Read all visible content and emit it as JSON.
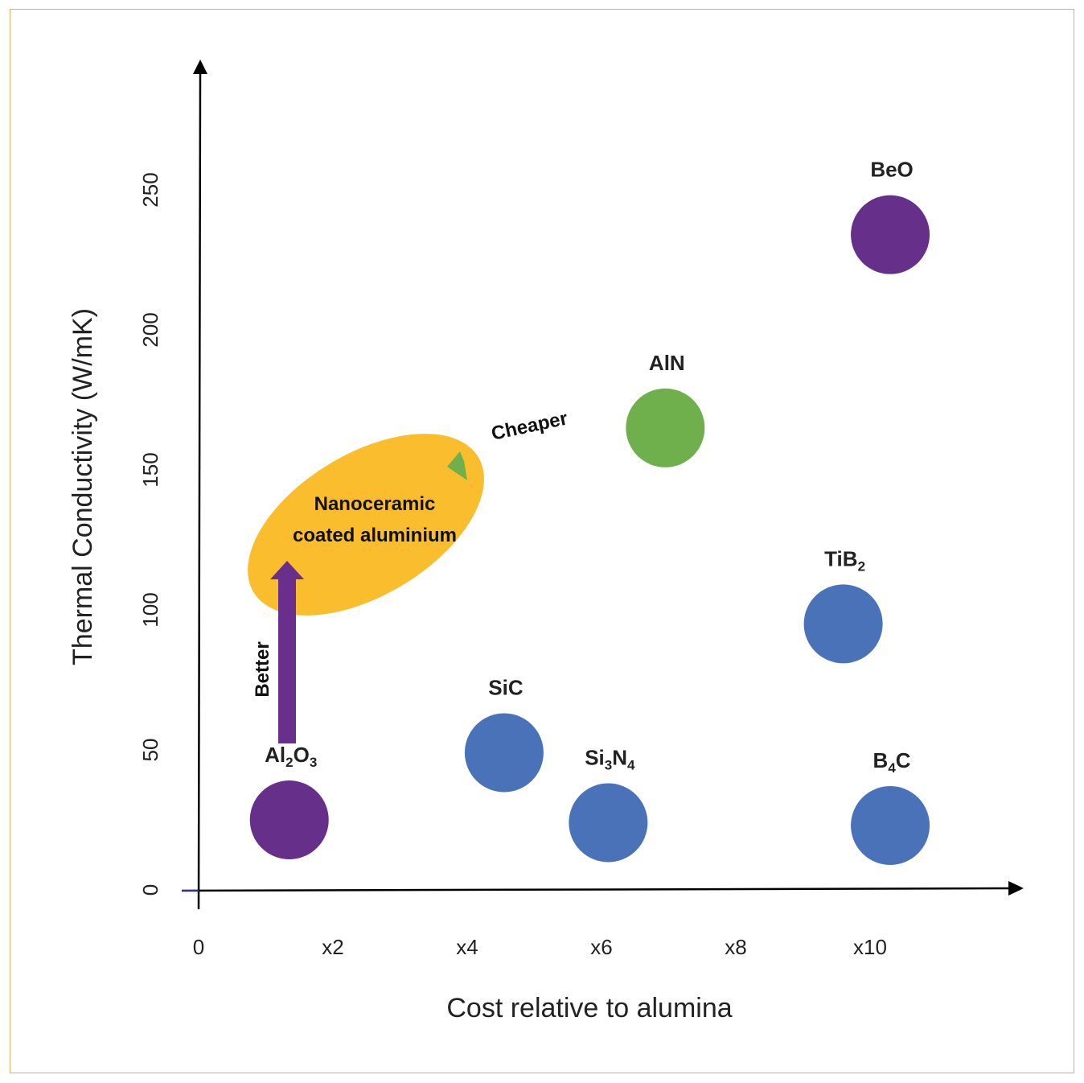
{
  "chart_data": {
    "type": "scatter",
    "title": "",
    "xlabel": "Cost relative to alumina",
    "ylabel": "Thermal Conductivity (W/mK)",
    "xlim": [
      0,
      12.4
    ],
    "ylim": [
      0,
      305
    ],
    "grid": false,
    "x_ticks": [
      {
        "value": 0,
        "label": "0"
      },
      {
        "value": 2,
        "label": "x2"
      },
      {
        "value": 4,
        "label": "x4"
      },
      {
        "value": 6,
        "label": "x6"
      },
      {
        "value": 8,
        "label": "x8"
      },
      {
        "value": 10,
        "label": "x10"
      }
    ],
    "y_ticks": [
      {
        "value": 0,
        "label": "0"
      },
      {
        "value": 50,
        "label": "50"
      },
      {
        "value": 100,
        "label": "100"
      },
      {
        "value": 150,
        "label": "150"
      },
      {
        "value": 200,
        "label": "200"
      },
      {
        "value": 250,
        "label": "250"
      }
    ],
    "points": [
      {
        "name": "Al₂O₃",
        "x": 1.35,
        "y": 25,
        "color": "#66308a"
      },
      {
        "name": "SiC",
        "x": 4.55,
        "y": 49,
        "color": "#4a72b8"
      },
      {
        "name": "Si₃N₄",
        "x": 6.1,
        "y": 24,
        "color": "#4a72b8"
      },
      {
        "name": "AlN",
        "x": 6.95,
        "y": 165,
        "color": "#6fb04c"
      },
      {
        "name": "TiB₂",
        "x": 9.6,
        "y": 95,
        "color": "#4a72b8"
      },
      {
        "name": "B₄C",
        "x": 10.3,
        "y": 23,
        "color": "#4a72b8"
      },
      {
        "name": "BeO",
        "x": 10.3,
        "y": 234,
        "color": "#66308a"
      }
    ],
    "annotations": [
      {
        "text_lines": [
          "Nanoceramic",
          "coated aluminium"
        ],
        "color": "#f9bd2d"
      },
      {
        "text": "Cheaper",
        "color": "#6fb04c"
      },
      {
        "text": "Better",
        "color": "#6a2f8c"
      }
    ]
  }
}
